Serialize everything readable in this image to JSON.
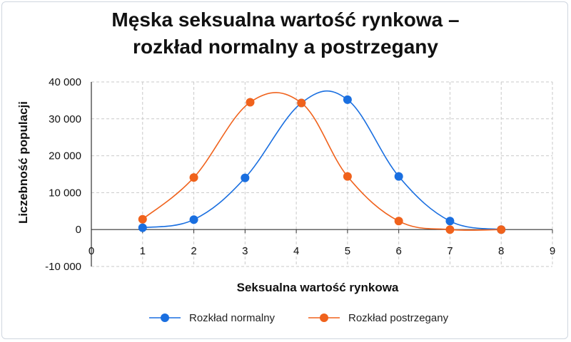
{
  "chart_data": {
    "type": "line",
    "title_lines": [
      "Męska seksualna wartość rynkowa –",
      "rozkład normalny a postrzegany"
    ],
    "xlabel": "Seksualna wartość rynkowa",
    "ylabel": "Liczebność populacji",
    "xlim": [
      0,
      9
    ],
    "ylim": [
      -10000,
      40000
    ],
    "x_ticks": [
      "0",
      "1",
      "2",
      "3",
      "4",
      "5",
      "6",
      "7",
      "8",
      "9"
    ],
    "y_ticks": [
      "40 000",
      "30 000",
      "20 000",
      "10 000",
      "0",
      "-10 000"
    ],
    "y_tick_values": [
      40000,
      30000,
      20000,
      10000,
      0,
      -10000
    ],
    "grid": true,
    "legend_position": "bottom",
    "series": [
      {
        "name": "Rozkład normalny",
        "color": "#1a6fe0",
        "x": [
          1,
          2,
          3,
          4.1,
          5,
          6,
          7,
          8
        ],
        "y": [
          500,
          2700,
          14000,
          34300,
          35200,
          14400,
          2300,
          0
        ]
      },
      {
        "name": "Rozkład postrzegany",
        "color": "#f0621c",
        "x": [
          1,
          2,
          3.1,
          4.1,
          5,
          6,
          7,
          8
        ],
        "y": [
          2800,
          14100,
          34500,
          34300,
          14400,
          2300,
          0,
          0
        ]
      }
    ]
  }
}
